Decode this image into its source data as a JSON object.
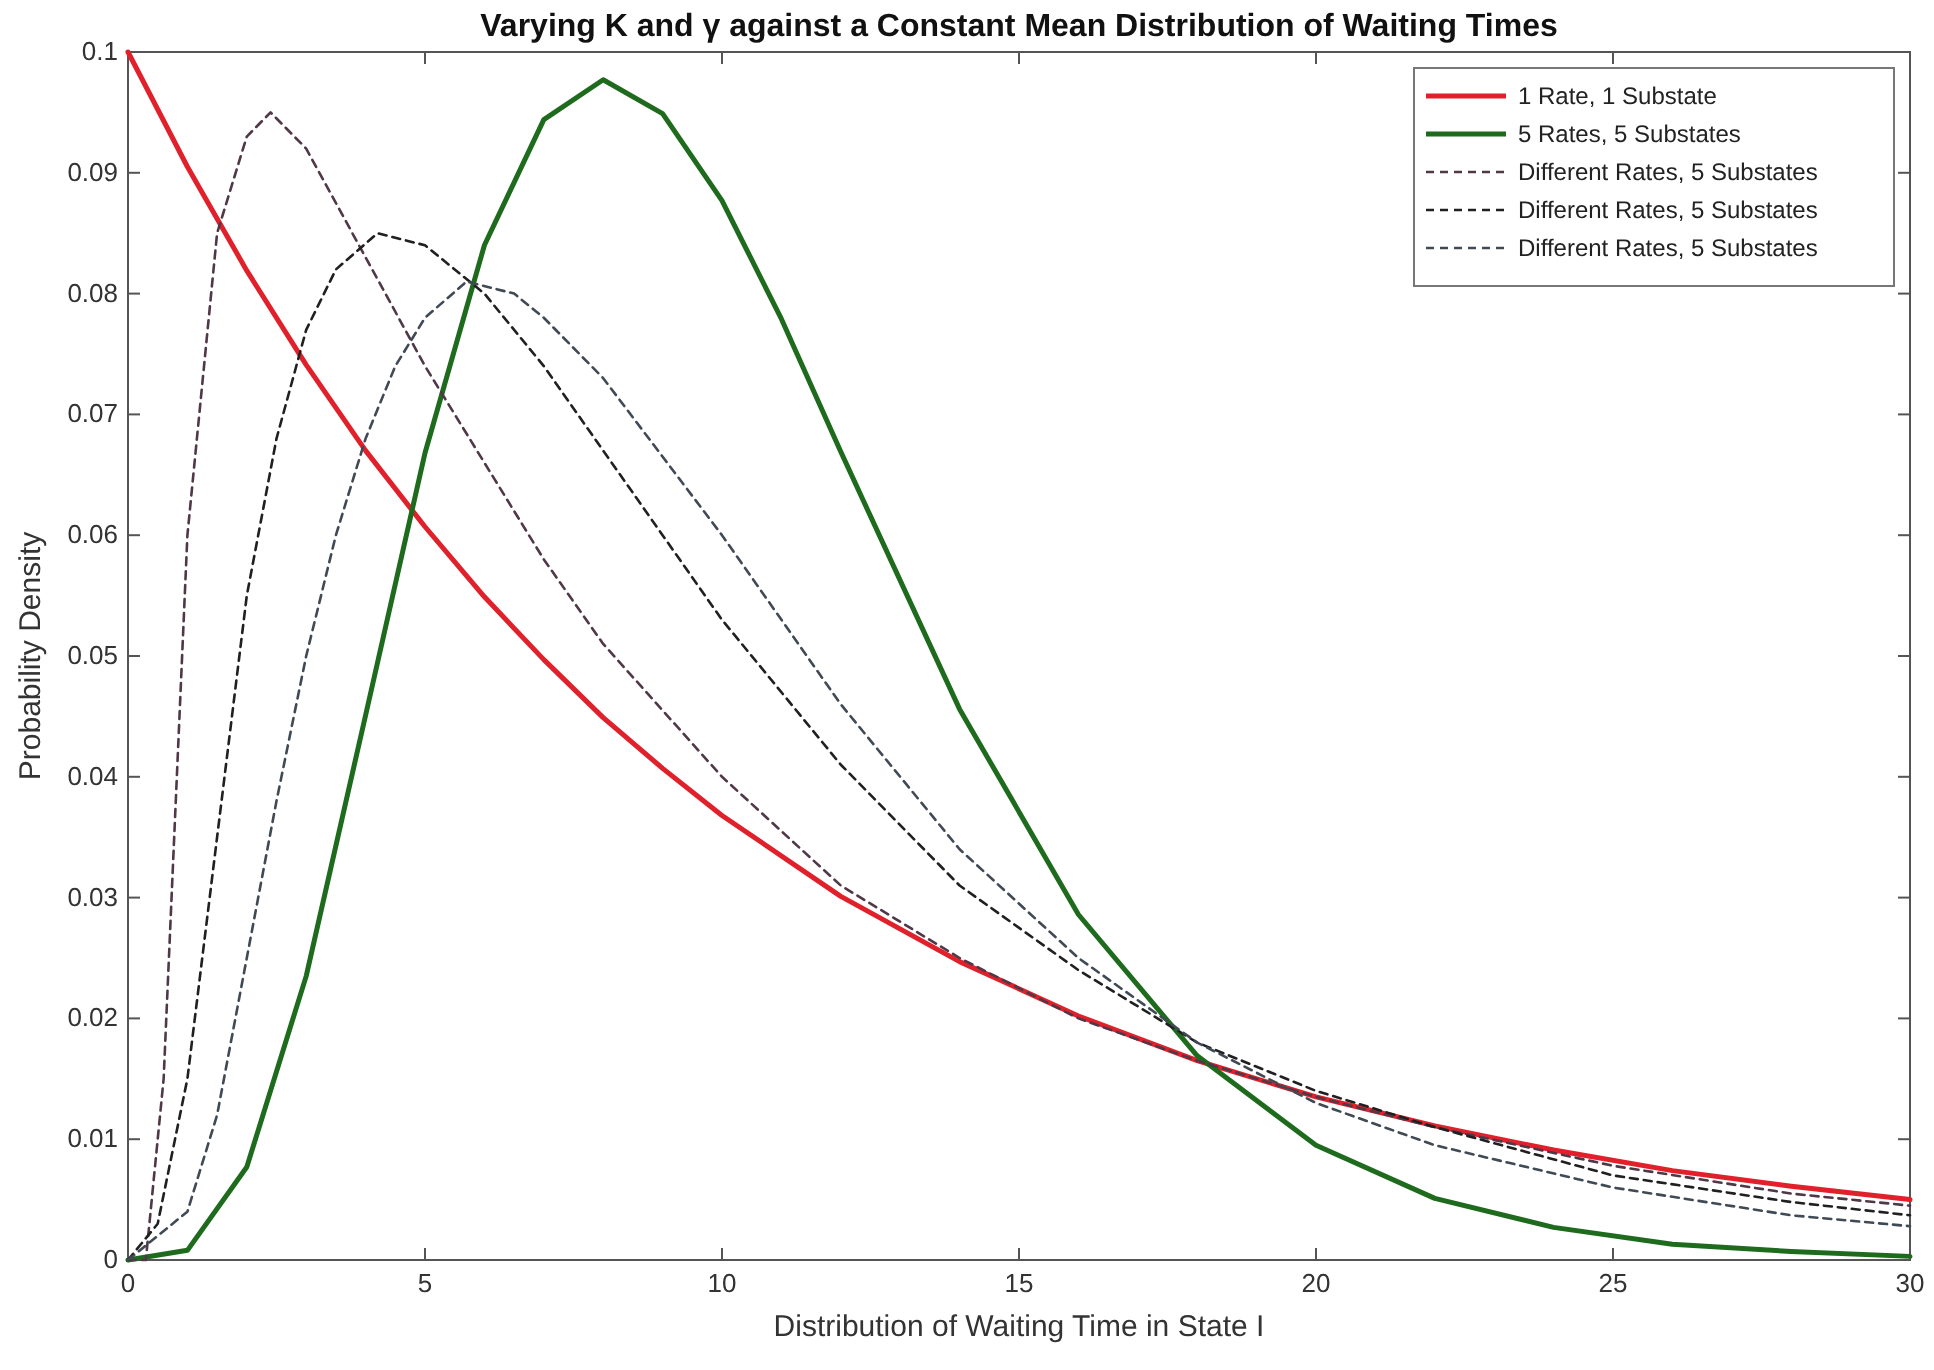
{
  "chart_data": {
    "type": "line",
    "title": "Varying K and γ against a Constant Mean Distribution of Waiting Times",
    "xlabel": "Distribution of Waiting Time in State I",
    "ylabel": "Probability Density",
    "xlim": [
      0,
      30
    ],
    "xticks": [
      0,
      5,
      10,
      15,
      20,
      25,
      30
    ],
    "ylim": [
      0,
      0.1
    ],
    "yticks": [
      0,
      0.01,
      0.02,
      0.03,
      0.04,
      0.05,
      0.06,
      0.07,
      0.08,
      0.09,
      0.1
    ],
    "grid": false,
    "legend": "top right",
    "series": [
      {
        "name": "1 Rate, 1 Substate",
        "color": "#e0202a",
        "line_style": "solid",
        "x": [
          0,
          1,
          2,
          3,
          4,
          5,
          6,
          7,
          8,
          9,
          10,
          12,
          14,
          16,
          18,
          20,
          22,
          24,
          26,
          28,
          30
        ],
        "values": [
          0.1,
          0.0905,
          0.0819,
          0.0741,
          0.067,
          0.0607,
          0.0549,
          0.0497,
          0.0449,
          0.0407,
          0.0368,
          0.0301,
          0.0247,
          0.0202,
          0.0165,
          0.0135,
          0.0111,
          0.0091,
          0.0074,
          0.0061,
          0.005
        ]
      },
      {
        "name": "5 Rates, 5 Substates",
        "color": "#1e6b1e",
        "line_style": "solid",
        "x": [
          0,
          1,
          2,
          3,
          4,
          5,
          6,
          7,
          8,
          9,
          10,
          11,
          12,
          14,
          16,
          18,
          20,
          22,
          24,
          26,
          28,
          30
        ],
        "values": [
          0,
          0.0008,
          0.0077,
          0.0235,
          0.0451,
          0.0668,
          0.084,
          0.0944,
          0.0977,
          0.0949,
          0.0877,
          0.0779,
          0.0669,
          0.0456,
          0.0286,
          0.0169,
          0.0095,
          0.0051,
          0.0027,
          0.0013,
          0.0007,
          0.0003
        ]
      },
      {
        "name": "Different Rates, 5 Substates",
        "color": "#503848",
        "line_style": "dashed",
        "x": [
          0,
          0.3,
          0.6,
          1,
          1.5,
          2,
          2.4,
          3,
          4,
          5,
          6,
          7,
          8,
          10,
          12,
          14,
          16,
          18,
          20,
          22,
          25,
          28,
          30
        ],
        "values": [
          0,
          0,
          0.015,
          0.06,
          0.085,
          0.093,
          0.095,
          0.092,
          0.083,
          0.074,
          0.066,
          0.058,
          0.051,
          0.04,
          0.031,
          0.025,
          0.02,
          0.0165,
          0.0135,
          0.011,
          0.0078,
          0.0055,
          0.0045
        ]
      },
      {
        "name": "Different Rates, 5 Substates",
        "color": "#202020",
        "line_style": "dashed",
        "x": [
          0,
          0.5,
          1,
          1.5,
          2,
          2.5,
          3,
          3.5,
          4.2,
          5,
          6,
          7,
          8,
          10,
          12,
          14,
          16,
          18,
          20,
          22,
          25,
          28,
          30
        ],
        "values": [
          0,
          0.003,
          0.015,
          0.035,
          0.055,
          0.068,
          0.077,
          0.082,
          0.085,
          0.084,
          0.08,
          0.074,
          0.067,
          0.053,
          0.041,
          0.031,
          0.024,
          0.018,
          0.014,
          0.011,
          0.007,
          0.0048,
          0.0037
        ]
      },
      {
        "name": "Different Rates, 5 Substates",
        "color": "#404a55",
        "line_style": "dashed",
        "x": [
          0,
          1,
          1.5,
          2,
          2.5,
          3,
          3.5,
          4,
          4.5,
          5,
          5.7,
          6.5,
          7,
          8,
          10,
          12,
          14,
          16,
          18,
          20,
          22,
          25,
          28,
          30
        ],
        "values": [
          0,
          0.004,
          0.012,
          0.025,
          0.038,
          0.05,
          0.06,
          0.068,
          0.074,
          0.078,
          0.081,
          0.08,
          0.078,
          0.073,
          0.06,
          0.046,
          0.034,
          0.025,
          0.018,
          0.013,
          0.0095,
          0.006,
          0.0037,
          0.0028
        ]
      }
    ]
  }
}
